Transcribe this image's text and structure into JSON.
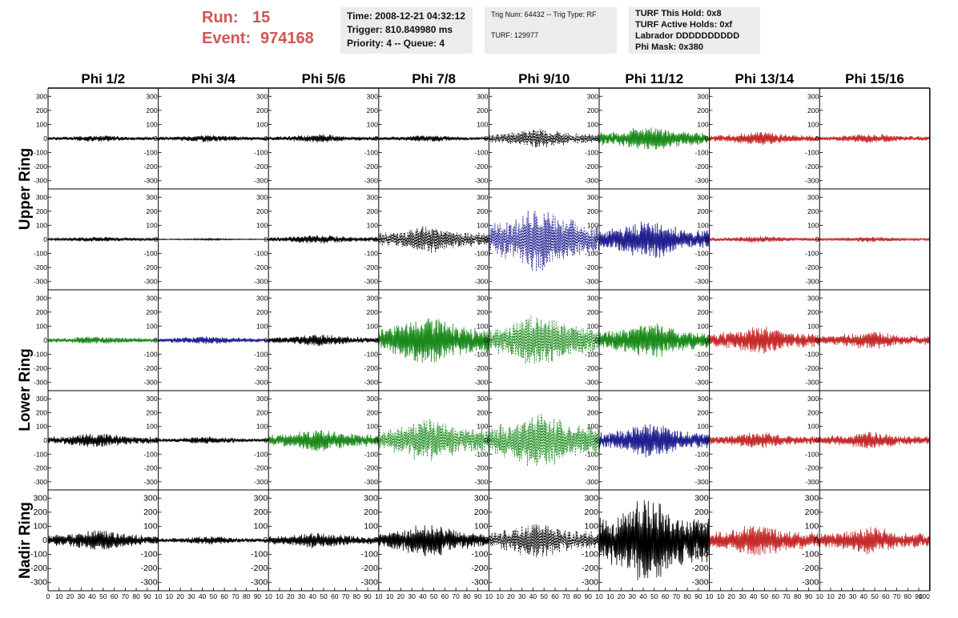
{
  "run": {
    "run_label": "Run:",
    "run_value": "15",
    "event_label": "Event:",
    "event_value": "974168"
  },
  "info_boxes": {
    "time": "Time: 2008-12-21 04:32:12",
    "trigger": "Trigger: 810.849980 ms",
    "priority": "Priority: 4 -- Queue: 4",
    "trig_num": "Trig Num: 64432 -- Trig Type: RF",
    "turf": "TURF: 129977",
    "turf_hold": "TURF This Hold: 0x8",
    "turf_active": "TURF Active Holds: 0xf",
    "labrador": "Labrador DDDDDDDDDD",
    "phi_mask": "Phi Mask: 0x380"
  },
  "chart_data": {
    "type": "line",
    "columns": [
      "Phi 1/2",
      "Phi 3/4",
      "Phi 5/6",
      "Phi 7/8",
      "Phi 9/10",
      "Phi 11/12",
      "Phi 13/14",
      "Phi 15/16"
    ],
    "rows": [
      {
        "name": "Upper Ring",
        "span": 2
      },
      {
        "name": "Lower Ring",
        "span": 2
      },
      {
        "name": "Nadir Ring",
        "span": 1
      }
    ],
    "xlim": [
      0,
      100
    ],
    "ylim": [
      -330,
      330
    ],
    "x_ticks": [
      "0",
      "10",
      "20",
      "30",
      "40",
      "50",
      "60",
      "70",
      "80",
      "90",
      "10",
      "10",
      "20",
      "30",
      "40",
      "50",
      "60",
      "70",
      "80",
      "90",
      "10",
      "10",
      "20",
      "30",
      "40",
      "50",
      "60",
      "70",
      "80",
      "90",
      "10",
      "10",
      "20",
      "30",
      "40",
      "50",
      "60",
      "70",
      "80",
      "90",
      "10",
      "10",
      "20",
      "30",
      "40",
      "50",
      "60",
      "70",
      "80",
      "90",
      "10",
      "10",
      "20",
      "30",
      "40",
      "50",
      "60",
      "70",
      "80",
      "90",
      "10",
      "10",
      "20",
      "30",
      "40",
      "50",
      "60",
      "70",
      "80",
      "90",
      "10",
      "10",
      "20",
      "30",
      "40",
      "50",
      "60",
      "70",
      "80",
      "90",
      "100"
    ],
    "y_ticks": [
      300,
      200,
      100,
      0,
      -100,
      -200,
      -300
    ],
    "y_tick_labels": [
      "300",
      "200",
      "100",
      "0",
      "-100",
      "-200",
      "-300"
    ],
    "colors": {
      "black": "#000000",
      "green": "#1b8a1b",
      "blue": "#1f1f8f",
      "red": "#c42a2a"
    },
    "panels": [
      [
        {
          "color": "black",
          "amp": 22,
          "dashed": false
        },
        {
          "color": "black",
          "amp": 25,
          "dashed": false
        },
        {
          "color": "black",
          "amp": 28,
          "dashed": false
        },
        {
          "color": "black",
          "amp": 22,
          "dashed": false
        },
        {
          "color": "black",
          "amp": 65,
          "dashed": true
        },
        {
          "color": "green",
          "amp": 85,
          "dashed": false
        },
        {
          "color": "red",
          "amp": 45,
          "dashed": false
        },
        {
          "color": "red",
          "amp": 32,
          "dashed": false
        }
      ],
      [
        {
          "color": "black",
          "amp": 18,
          "dashed": false
        },
        {
          "color": "black",
          "amp": 6,
          "dashed": false
        },
        {
          "color": "black",
          "amp": 30,
          "dashed": false
        },
        {
          "color": "black",
          "amp": 90,
          "dashed": true
        },
        {
          "color": "blue",
          "amp": 220,
          "dashed": true
        },
        {
          "color": "blue",
          "amp": 130,
          "dashed": false
        },
        {
          "color": "red",
          "amp": 22,
          "dashed": false
        },
        {
          "color": "red",
          "amp": 18,
          "dashed": false
        }
      ],
      [
        {
          "color": "green",
          "amp": 28,
          "dashed": false
        },
        {
          "color": "blue",
          "amp": 28,
          "dashed": false
        },
        {
          "color": "black",
          "amp": 40,
          "dashed": false
        },
        {
          "color": "green",
          "amp": 170,
          "dashed": false
        },
        {
          "color": "green",
          "amp": 180,
          "dashed": true
        },
        {
          "color": "green",
          "amp": 120,
          "dashed": false
        },
        {
          "color": "red",
          "amp": 95,
          "dashed": false
        },
        {
          "color": "red",
          "amp": 60,
          "dashed": false
        }
      ],
      [
        {
          "color": "black",
          "amp": 50,
          "dashed": false
        },
        {
          "color": "black",
          "amp": 25,
          "dashed": false
        },
        {
          "color": "green",
          "amp": 80,
          "dashed": false
        },
        {
          "color": "green",
          "amp": 150,
          "dashed": true
        },
        {
          "color": "green",
          "amp": 200,
          "dashed": true
        },
        {
          "color": "blue",
          "amp": 120,
          "dashed": false
        },
        {
          "color": "red",
          "amp": 55,
          "dashed": false
        },
        {
          "color": "red",
          "amp": 60,
          "dashed": false
        }
      ],
      [
        {
          "color": "black",
          "amp": 70,
          "dashed": false
        },
        {
          "color": "black",
          "amp": 28,
          "dashed": false
        },
        {
          "color": "black",
          "amp": 55,
          "dashed": false
        },
        {
          "color": "black",
          "amp": 110,
          "dashed": false
        },
        {
          "color": "black",
          "amp": 120,
          "dashed": true
        },
        {
          "color": "black",
          "amp": 300,
          "dashed": false
        },
        {
          "color": "red",
          "amp": 110,
          "dashed": false
        },
        {
          "color": "red",
          "amp": 95,
          "dashed": false
        }
      ]
    ]
  }
}
